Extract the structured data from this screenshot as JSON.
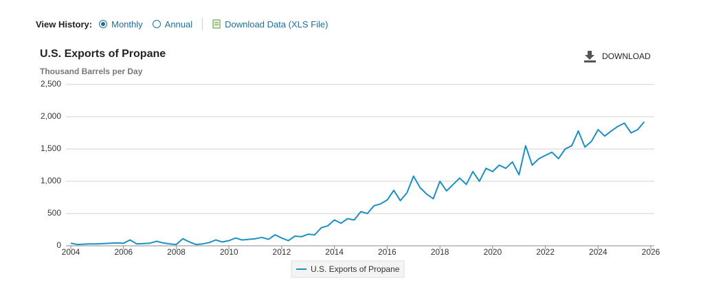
{
  "ui": {
    "view_history": "View History:",
    "monthly": "Monthly",
    "annual": "Annual",
    "download_data": "Download Data (XLS File)",
    "download": "DOWNLOAD"
  },
  "chart_data": {
    "type": "line",
    "title": "U.S. Exports of Propane",
    "y_label": "Thousand Barrels per Day",
    "x": [
      2004,
      2004.25,
      2004.5,
      2004.75,
      2005,
      2005.25,
      2005.5,
      2005.75,
      2006,
      2006.25,
      2006.5,
      2006.75,
      2007,
      2007.25,
      2007.5,
      2007.75,
      2008,
      2008.25,
      2008.5,
      2008.75,
      2009,
      2009.25,
      2009.5,
      2009.75,
      2010,
      2010.25,
      2010.5,
      2010.75,
      2011,
      2011.25,
      2011.5,
      2011.75,
      2012,
      2012.25,
      2012.5,
      2012.75,
      2013,
      2013.25,
      2013.5,
      2013.75,
      2014,
      2014.25,
      2014.5,
      2014.75,
      2015,
      2015.25,
      2015.5,
      2015.75,
      2016,
      2016.25,
      2016.5,
      2016.75,
      2017,
      2017.25,
      2017.5,
      2017.75,
      2018,
      2018.25,
      2018.5,
      2018.75,
      2019,
      2019.25,
      2019.5,
      2019.75,
      2020,
      2020.25,
      2020.5,
      2020.75,
      2021,
      2021.25,
      2021.5,
      2021.75,
      2022,
      2022.25,
      2022.5,
      2022.75,
      2023,
      2023.25,
      2023.5,
      2023.75,
      2024,
      2024.25,
      2024.5,
      2024.75,
      2025,
      2025.25,
      2025.5,
      2025.75
    ],
    "series": [
      {
        "name": "U.S. Exports of Propane",
        "color": "#1a8fc4",
        "values": [
          40,
          20,
          25,
          30,
          30,
          35,
          40,
          45,
          40,
          90,
          30,
          35,
          40,
          70,
          45,
          30,
          20,
          110,
          60,
          20,
          30,
          50,
          90,
          60,
          80,
          120,
          90,
          100,
          110,
          130,
          100,
          170,
          120,
          80,
          150,
          140,
          180,
          170,
          280,
          310,
          400,
          350,
          420,
          400,
          530,
          500,
          620,
          650,
          710,
          860,
          700,
          820,
          1080,
          900,
          800,
          730,
          1000,
          850,
          950,
          1050,
          950,
          1150,
          1000,
          1200,
          1150,
          1250,
          1200,
          1300,
          1100,
          1550,
          1250,
          1350,
          1400,
          1450,
          1350,
          1500,
          1550,
          1780,
          1530,
          1620,
          1800,
          1700,
          1780,
          1850,
          1900,
          1750,
          1800,
          1920
        ]
      }
    ],
    "xlim": [
      2004,
      2026
    ],
    "xticks": [
      2004,
      2006,
      2008,
      2010,
      2012,
      2014,
      2016,
      2018,
      2020,
      2022,
      2024,
      2026
    ],
    "ylim": [
      0,
      2500
    ],
    "yticks": [
      0,
      500,
      {
        "value": 1000,
        "label": "1,000"
      },
      {
        "value": 1500,
        "label": "1,500"
      },
      {
        "value": 2000,
        "label": "2,000"
      },
      {
        "value": 2500,
        "label": "2,500"
      }
    ],
    "grid": true,
    "legend": "bottom"
  }
}
